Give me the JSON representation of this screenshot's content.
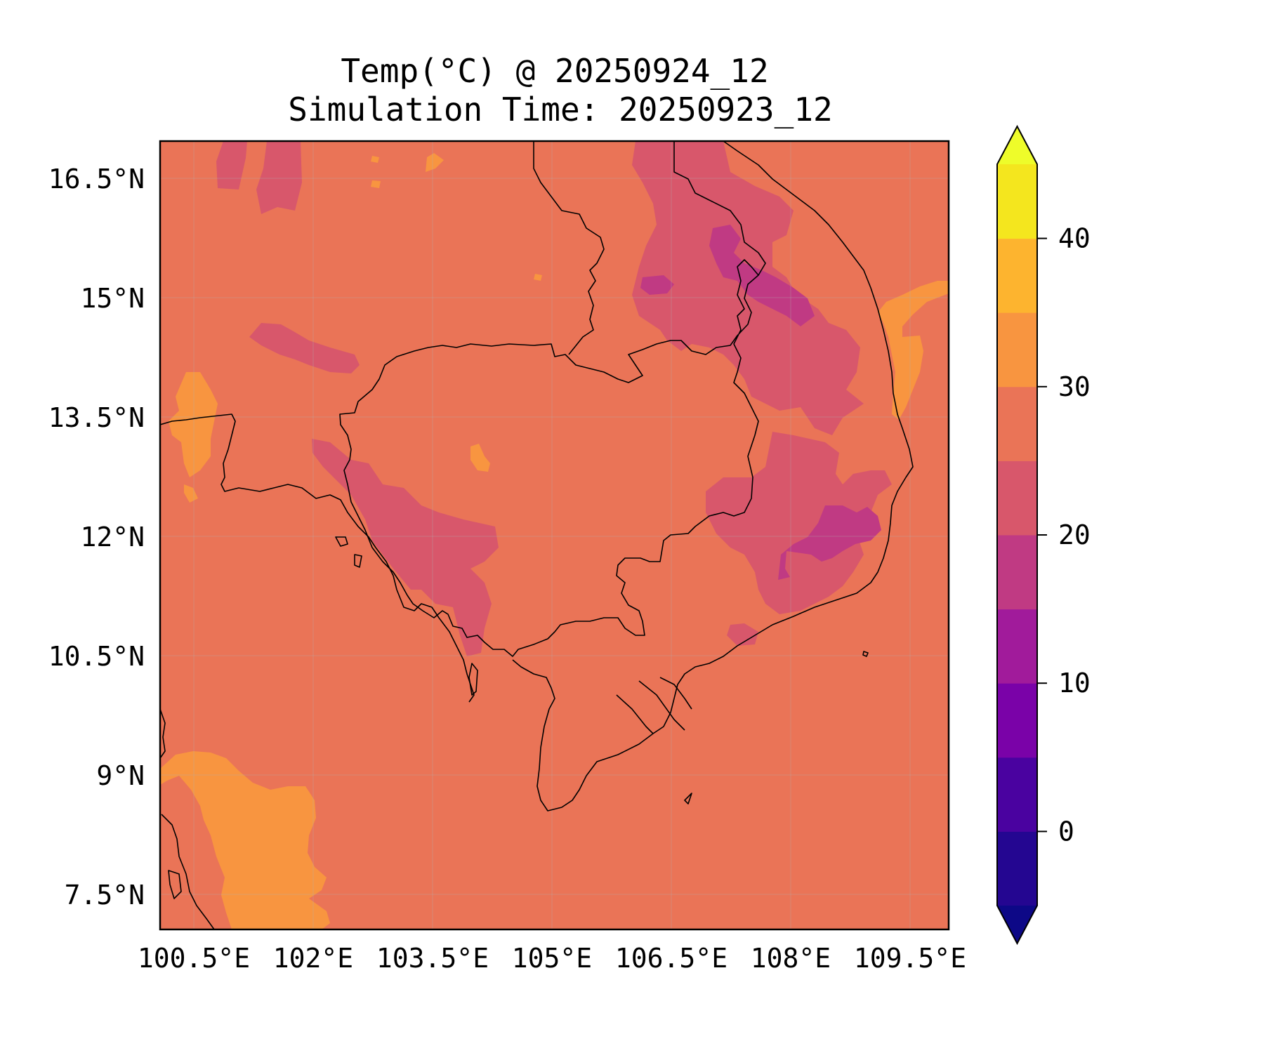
{
  "title": {
    "line1": "Temp(°C) @ 20250924_12",
    "line2": "Simulation Time: 20250923_12"
  },
  "map": {
    "lon_range": [
      100.5,
      110.4
    ],
    "lat_range": [
      7.1,
      17.0
    ],
    "background_band_color": "#ea7457",
    "lon_ticks": [
      {
        "value": 100.5,
        "label": "100.5°E"
      },
      {
        "value": 102,
        "label": "102°E"
      },
      {
        "value": 103.5,
        "label": "103.5°E"
      },
      {
        "value": 105,
        "label": "105°E"
      },
      {
        "value": 106.5,
        "label": "106.5°E"
      },
      {
        "value": 108,
        "label": "108°E"
      },
      {
        "value": 109.5,
        "label": "109.5°E"
      }
    ],
    "lat_ticks": [
      {
        "value": 16.5,
        "label": "16.5°N"
      },
      {
        "value": 15,
        "label": "15°N"
      },
      {
        "value": 13.5,
        "label": "13.5°N"
      },
      {
        "value": 12,
        "label": "12°N"
      },
      {
        "value": 10.5,
        "label": "10.5°N"
      },
      {
        "value": 9,
        "label": "9°N"
      },
      {
        "value": 7.5,
        "label": "7.5°N"
      }
    ]
  },
  "colorbar": {
    "range": [
      -5,
      45
    ],
    "extend": "both",
    "under_color": "#0d0887",
    "over_color": "#eefc2a",
    "bins": [
      {
        "from": -5,
        "to": 0,
        "color": "#240691"
      },
      {
        "from": 0,
        "to": 5,
        "color": "#4a02a0"
      },
      {
        "from": 5,
        "to": 10,
        "color": "#7a02a8"
      },
      {
        "from": 10,
        "to": 15,
        "color": "#a11b9b"
      },
      {
        "from": 15,
        "to": 20,
        "color": "#c03a83"
      },
      {
        "from": 20,
        "to": 25,
        "color": "#d8576b"
      },
      {
        "from": 25,
        "to": 30,
        "color": "#ea7457"
      },
      {
        "from": 30,
        "to": 35,
        "color": "#f89540"
      },
      {
        "from": 35,
        "to": 40,
        "color": "#fdb42f"
      },
      {
        "from": 40,
        "to": 45,
        "color": "#f4e61e"
      }
    ],
    "ticks": [
      {
        "value": 0,
        "label": "0"
      },
      {
        "value": 10,
        "label": "10"
      },
      {
        "value": 20,
        "label": "20"
      },
      {
        "value": 30,
        "label": "30"
      },
      {
        "value": 40,
        "label": "40"
      }
    ]
  },
  "regions": [
    {
      "name": "nw-cool-patch-1",
      "band": "20-25",
      "color": "#d8576b"
    },
    {
      "name": "nw-cool-patch-2",
      "band": "20-25",
      "color": "#d8576b"
    },
    {
      "name": "central-thailand-cool-patch",
      "band": "20-25",
      "color": "#d8576b"
    },
    {
      "name": "cardamom-cool-patch",
      "band": "20-25",
      "color": "#d8576b"
    },
    {
      "name": "vietnam-highlands-north",
      "band": "20-25",
      "color": "#d8576b"
    },
    {
      "name": "vietnam-highlands-south",
      "band": "20-25",
      "color": "#d8576b"
    },
    {
      "name": "highland-core-1",
      "band": "15-20",
      "color": "#c03a83"
    },
    {
      "name": "highland-core-2",
      "band": "15-20",
      "color": "#c03a83"
    },
    {
      "name": "gulf-warm-patch",
      "band": "30-35",
      "color": "#f89540"
    },
    {
      "name": "east-sea-warm-patch",
      "band": "30-35",
      "color": "#f89540"
    },
    {
      "name": "west-warm-patch",
      "band": "30-35",
      "color": "#f89540"
    },
    {
      "name": "small-warm-patch",
      "band": "30-35",
      "color": "#f89540"
    }
  ]
}
